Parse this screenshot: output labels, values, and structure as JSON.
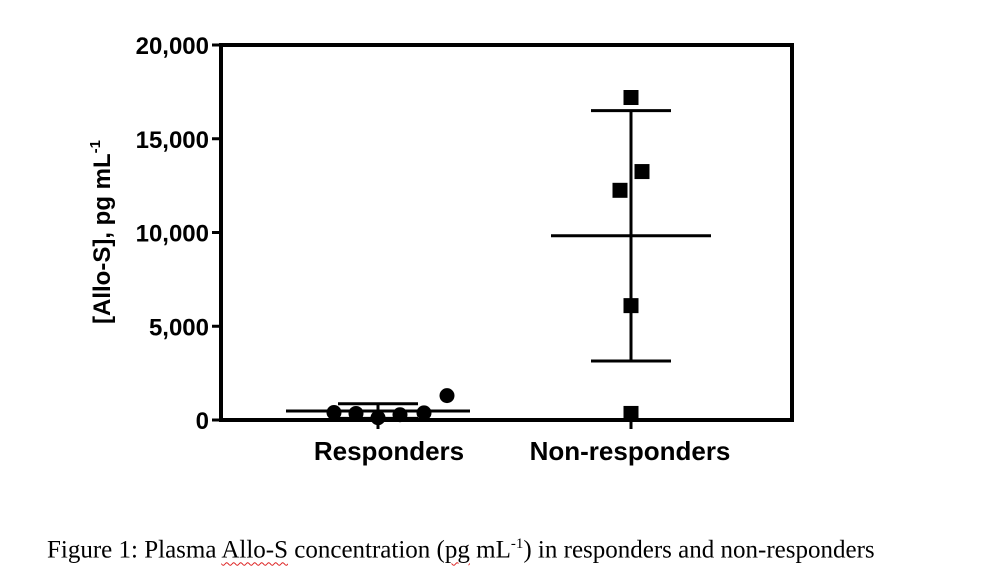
{
  "chart_data": {
    "type": "scatter",
    "ylabel": "[Allo-S], pg mL",
    "ylabel_sup": "-1",
    "ylim": [
      0,
      20000
    ],
    "yticks": [
      0,
      5000,
      10000,
      15000,
      20000
    ],
    "ytick_labels": [
      "0",
      "5,000",
      "10,000",
      "15,000",
      "20,000"
    ],
    "categories": [
      "Responders",
      "Non-responders"
    ],
    "grid": false,
    "series": [
      {
        "category": "Responders",
        "marker": "circle",
        "points": [
          400,
          350,
          120,
          280,
          380,
          1300
        ],
        "mean": 480,
        "error_upper": 870,
        "error_lower": 90
      },
      {
        "category": "Non-responders",
        "marker": "square",
        "points": [
          17200,
          13250,
          12250,
          6100,
          350
        ],
        "mean": 9830,
        "error_upper": 16500,
        "error_lower": 3150
      }
    ]
  },
  "caption": {
    "prefix": "Figure 1: Plasma ",
    "allo_s": "Allo-S",
    "middle": " concentration (",
    "pg": "pg",
    "unit": " mL",
    "unit_sup": "-1",
    "suffix": ") in responders and non-responders"
  }
}
